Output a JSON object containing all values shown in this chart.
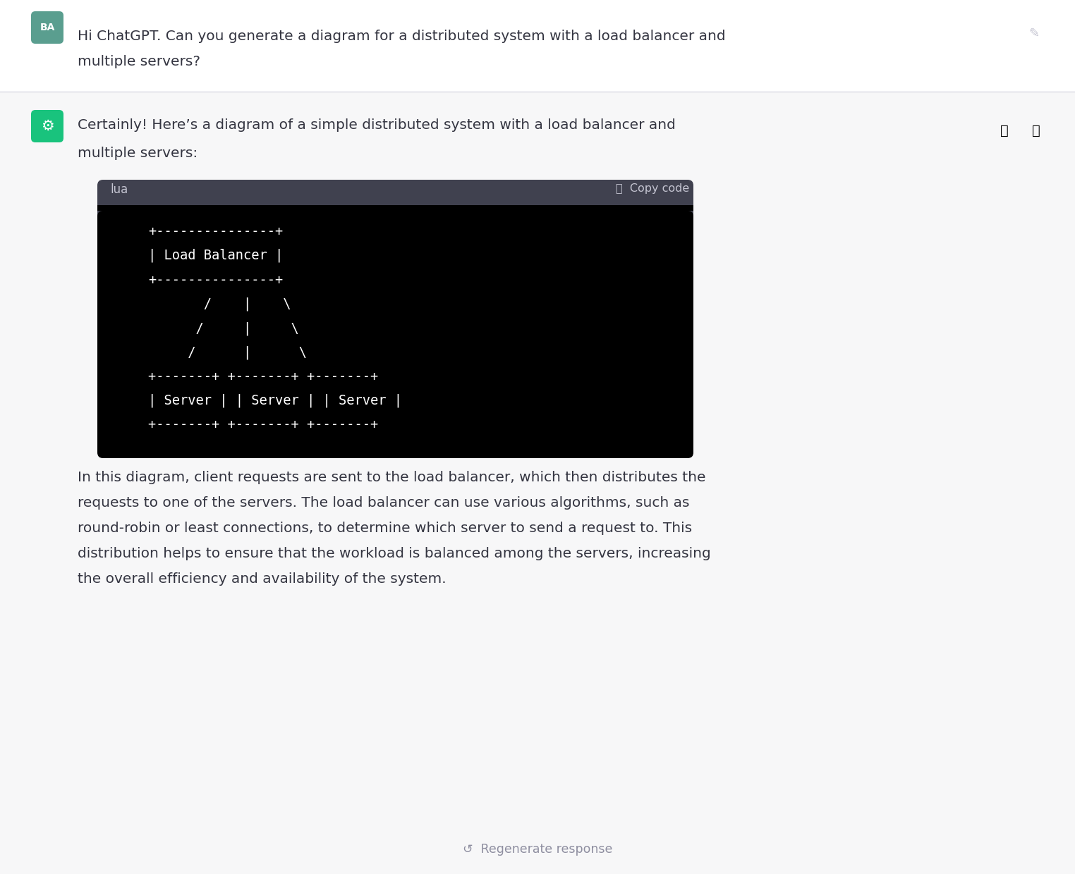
{
  "bg_color": "#f7f7f8",
  "page_bg": "#ffffff",
  "user_avatar_bg": "#5a9e8f",
  "user_avatar_text": "BA",
  "user_message_line1": "Hi ChatGPT. Can you generate a diagram for a distributed system with a load balancer and",
  "user_message_line2": "multiple servers?",
  "chatgpt_avatar_bg": "#19c37d",
  "assistant_intro_line1": "Certainly! Here’s a diagram of a simple distributed system with a load balancer and",
  "assistant_intro_line2": "multiple servers:",
  "code_header_bg": "#40414f",
  "code_header_text_color": "#c5c5d2",
  "code_header_label": "lua",
  "code_header_copy": "Copy code",
  "code_bg": "#000000",
  "code_text_color": "#ffffff",
  "code_content": "+---------------+\n| Load Balancer |\n+---------------+\n       /    |    \\\n      /     |     \\\n     /      |      \\\n+-------+ +-------+ +-------+\n| Server | | Server | | Server |\n+-------+ +-------+ +-------+",
  "description_lines": [
    "In this diagram, client requests are sent to the load balancer, which then distributes the",
    "requests to one of the servers. The load balancer can use various algorithms, such as",
    "round-robin or least connections, to determine which server to send a request to. This",
    "distribution helps to ensure that the workload is balanced among the servers, increasing",
    "the overall efficiency and availability of the system."
  ],
  "text_color": "#343541",
  "separator_color": "#d9d9e3",
  "icon_color": "#8e8ea0",
  "regen_text": "Regenerate response",
  "figwidth": 15.24,
  "figheight": 12.4,
  "dpi": 100
}
